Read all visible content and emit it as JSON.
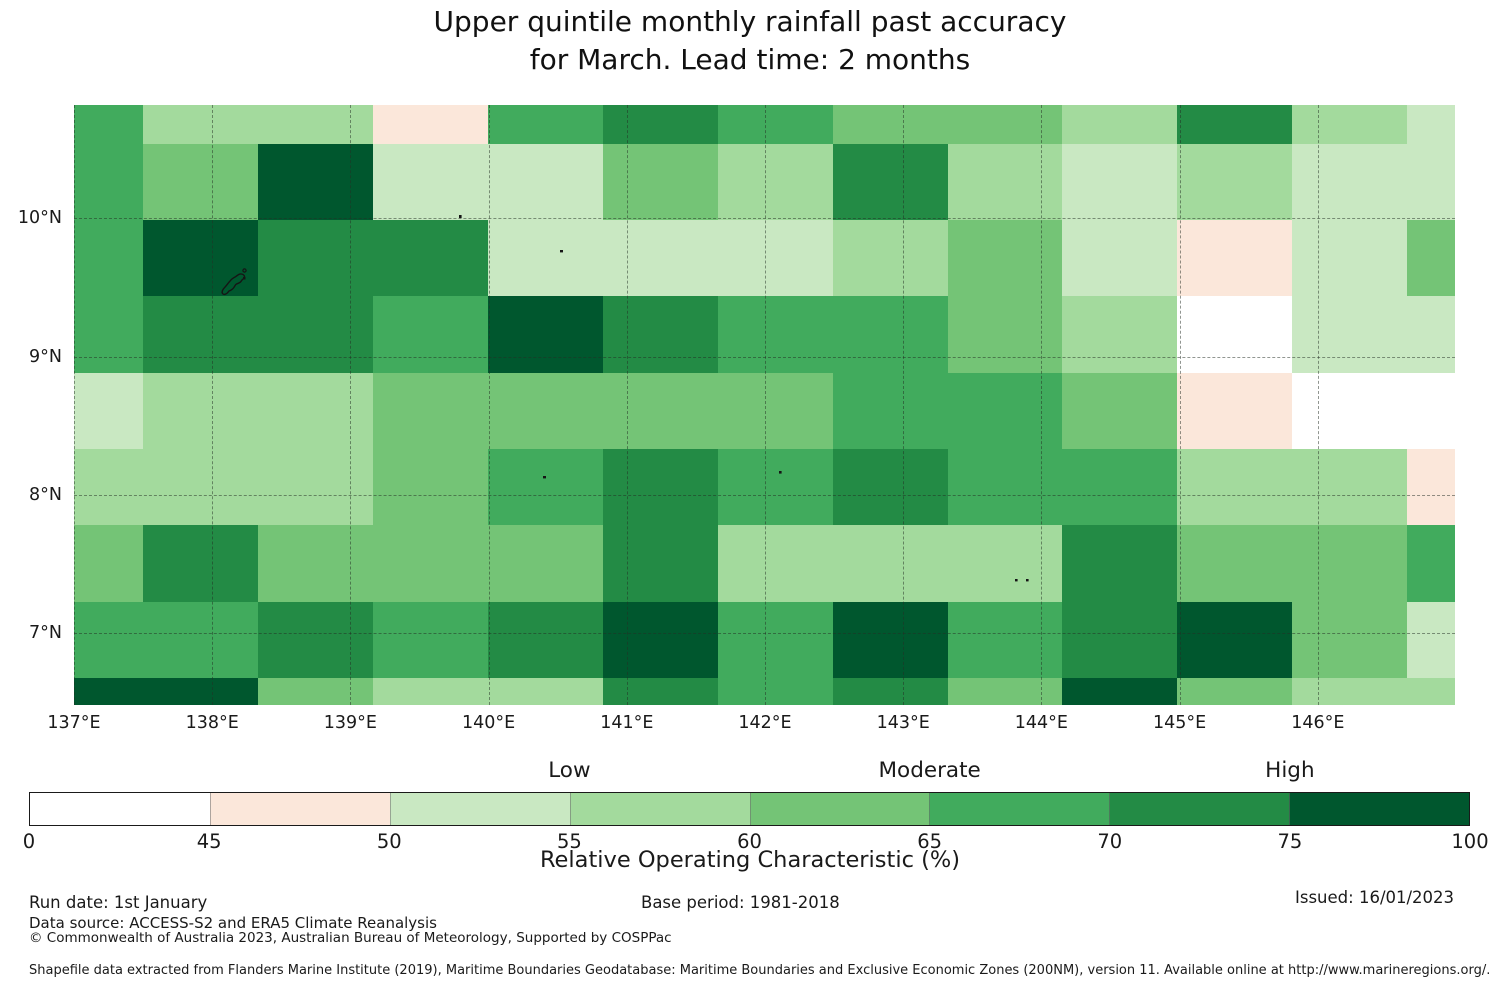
{
  "title": {
    "line1": "Upper quintile monthly rainfall past accuracy",
    "line2": "for March. Lead time: 2 months"
  },
  "chart_data": {
    "type": "heatmap",
    "title": "Upper quintile monthly rainfall past accuracy for March. Lead time: 2 months",
    "x_axis": {
      "tick_labels": [
        "137°E",
        "138°E",
        "139°E",
        "140°E",
        "141°E",
        "142°E",
        "143°E",
        "144°E",
        "145°E",
        "146°E"
      ]
    },
    "y_axis": {
      "tick_labels": [
        "10°N",
        "9°N",
        "8°N",
        "7°N"
      ]
    },
    "lon_range_deg_east": [
      137.0,
      147.0
    ],
    "lat_range_deg_north": [
      6.48,
      10.82
    ],
    "grid": {
      "n_rows": 9,
      "n_cols": 13,
      "note": "approx 0.83 deg lon x 0.55 deg lat model cells; top/bottom/left/right edge cells are partial"
    },
    "bin_ranges_roc_percent": [
      "0-45",
      "45-50",
      "50-55",
      "55-60",
      "60-65",
      "65-70",
      "70-75",
      "75-100"
    ],
    "bin_colors": [
      "#ffffff",
      "#fbe7da",
      "#c9e8c2",
      "#a3da9d",
      "#74c476",
      "#41ab5d",
      "#238b45",
      "#00572e"
    ],
    "bin_index_matrix": [
      [
        5,
        3,
        3,
        1,
        5,
        6,
        5,
        4,
        4,
        3,
        6,
        3,
        2
      ],
      [
        5,
        4,
        7,
        2,
        2,
        4,
        3,
        6,
        3,
        2,
        3,
        2,
        2
      ],
      [
        5,
        7,
        6,
        6,
        2,
        2,
        2,
        3,
        4,
        2,
        1,
        2,
        4
      ],
      [
        5,
        6,
        6,
        5,
        7,
        6,
        5,
        5,
        4,
        3,
        0,
        2,
        2
      ],
      [
        2,
        3,
        3,
        4,
        4,
        4,
        4,
        5,
        5,
        4,
        1,
        0,
        0
      ],
      [
        3,
        3,
        3,
        4,
        5,
        6,
        5,
        6,
        5,
        5,
        3,
        3,
        1
      ],
      [
        4,
        6,
        4,
        4,
        4,
        6,
        3,
        3,
        3,
        6,
        4,
        4,
        5
      ],
      [
        5,
        5,
        6,
        5,
        6,
        7,
        5,
        7,
        5,
        6,
        7,
        4,
        2
      ],
      [
        7,
        7,
        4,
        3,
        3,
        6,
        5,
        6,
        4,
        7,
        4,
        3,
        3
      ]
    ],
    "legend": {
      "band_labels": [
        "Low",
        "Moderate",
        "High"
      ],
      "bin_edges": [
        0,
        45,
        50,
        55,
        60,
        65,
        70,
        75,
        100
      ],
      "tick_labels": [
        "0",
        "45",
        "50",
        "55",
        "60",
        "65",
        "70",
        "75",
        "100"
      ],
      "xlabel": "Relative Operating Characteristic (%)",
      "position": "bottom"
    }
  },
  "footer": {
    "run_date": "Run date: 1st January",
    "base_period": "Base period: 1981-2018",
    "issued": "Issued: 16/01/2023",
    "data_source": "Data source: ACCESS-S2 and ERA5 Climate Reanalysis",
    "copyright": "© Commonwealth of Australia 2023, Australian Bureau of Meteorology, Supported by COSPPac",
    "shapefile_note": "Shapefile data extracted from Flanders Marine Institute (2019), Maritime Boundaries Geodatabase: Maritime Boundaries and Exclusive Economic Zones (200NM), version 11. Available online at http://www.marineregions.org/."
  }
}
